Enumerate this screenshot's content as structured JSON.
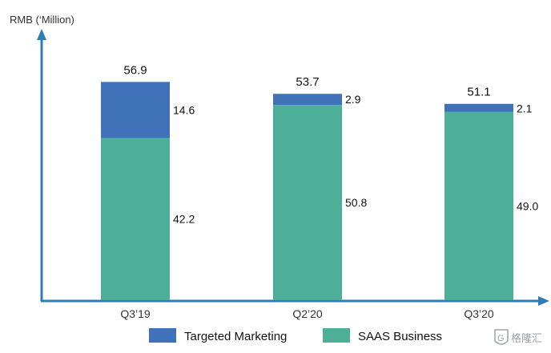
{
  "chart_data": {
    "type": "bar",
    "stacked": true,
    "ylabel": "RMB (‘Million)",
    "categories": [
      "Q3’19",
      "Q2’20",
      "Q3’20"
    ],
    "series": [
      {
        "name": "SAAS Business",
        "values": [
          42.2,
          50.8,
          49.0
        ],
        "value_labels": [
          "42.2",
          "50.8",
          "49.0"
        ],
        "color": "#4DAF98"
      },
      {
        "name": "Targeted Marketing",
        "values": [
          14.6,
          2.9,
          2.1
        ],
        "value_labels": [
          "14.6",
          "2.9",
          "2.1"
        ],
        "color": "#3F72B8"
      }
    ],
    "totals": [
      "56.9",
      "53.7",
      "51.1"
    ],
    "axis_color": "#2E7DB5",
    "ylim": [
      0,
      70
    ],
    "grid": false,
    "legend_placement": "bottom-center"
  },
  "legend": [
    {
      "label": "Targeted Marketing",
      "color": "#3F72B8"
    },
    {
      "label": "SAAS Business",
      "color": "#4DAF98"
    }
  ],
  "watermark": {
    "text": "格隆汇",
    "icon": "shield-logo-icon"
  }
}
